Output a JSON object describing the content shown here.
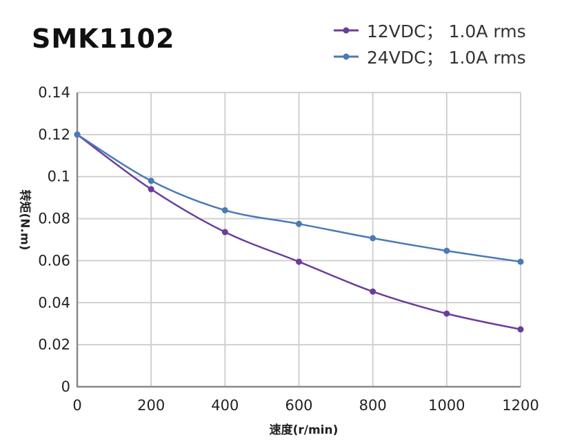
{
  "chart_data": {
    "type": "line",
    "title": "SMK1102",
    "xlabel": "速度(r/min)",
    "ylabel": "转矩(N.m)",
    "x": [
      0,
      200,
      400,
      600,
      800,
      1000,
      1200
    ],
    "xlim": [
      0,
      1200
    ],
    "ylim": [
      0,
      0.14
    ],
    "xticks": [
      "0",
      "200",
      "400",
      "600",
      "800",
      "1000",
      "1200"
    ],
    "yticks": [
      "0",
      "0.02",
      "0.04",
      "0.06",
      "0.08",
      "0.1",
      "0.12",
      "0.14"
    ],
    "grid": true,
    "legend_position": "top-right",
    "series": [
      {
        "name": "12VDC； 1.0A rms",
        "color": "#6a3d9a",
        "values": [
          0.12,
          0.094,
          0.0736,
          0.0595,
          0.0453,
          0.0348,
          0.0273
        ]
      },
      {
        "name": "24VDC； 1.0A rms",
        "color": "#4a7ab5",
        "values": [
          0.12,
          0.098,
          0.084,
          0.0775,
          0.0707,
          0.0647,
          0.0595
        ]
      }
    ]
  }
}
